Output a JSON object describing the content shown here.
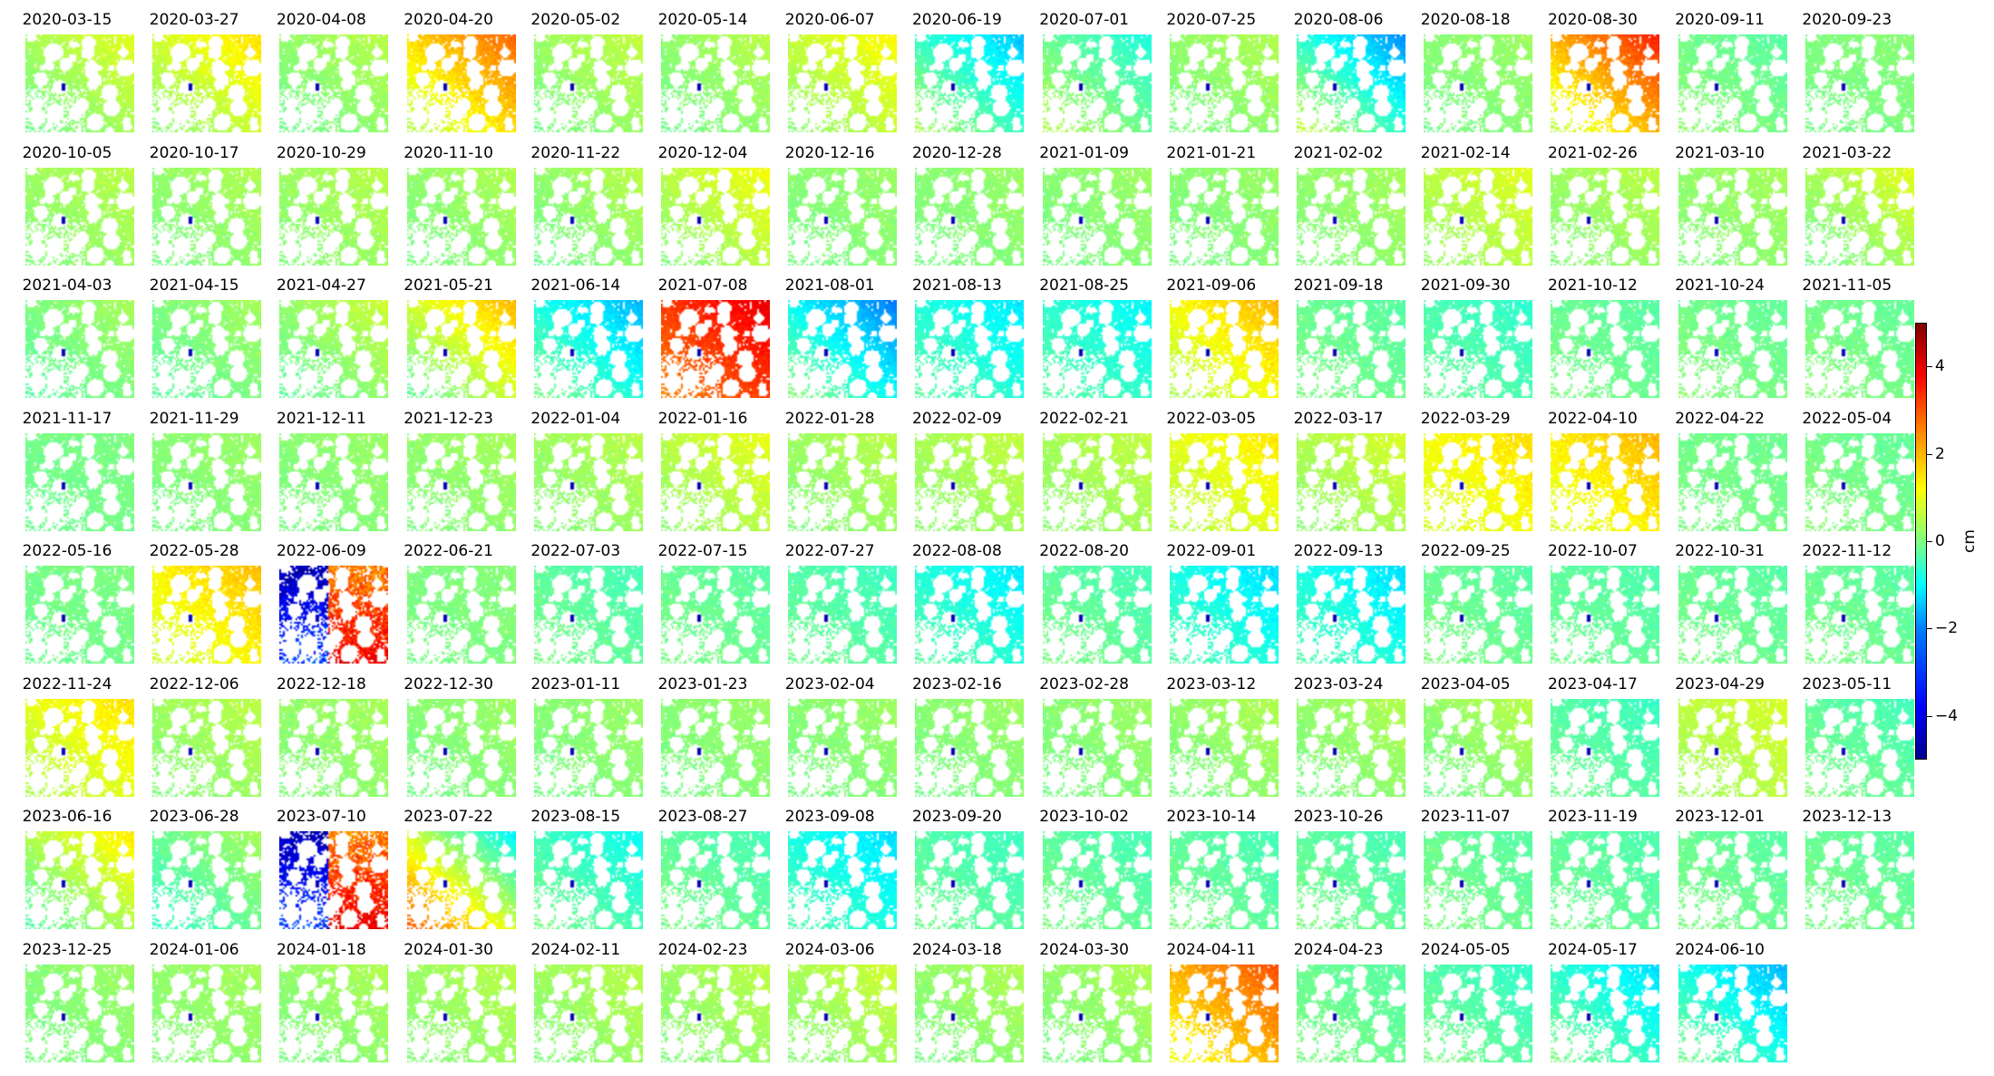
{
  "chart_data": {
    "type": "heatmap",
    "description_unit": "cm",
    "colorbar": {
      "label": "cm",
      "range": [
        -5,
        5
      ],
      "ticks": [
        -4,
        -2,
        0,
        2,
        4
      ],
      "tick_labels": [
        "−4",
        "−2",
        "0",
        "2",
        "4"
      ],
      "colormap": "jet"
    },
    "panels": [
      {
        "date": "2020-03-15",
        "mean": 0.4,
        "grad": 0.6
      },
      {
        "date": "2020-03-27",
        "mean": 0.8,
        "grad": 0.8
      },
      {
        "date": "2020-04-08",
        "mean": 0.2,
        "grad": 0.4
      },
      {
        "date": "2020-04-20",
        "mean": 1.6,
        "grad": 1.2
      },
      {
        "date": "2020-05-02",
        "mean": 0.3,
        "grad": 0.4
      },
      {
        "date": "2020-05-14",
        "mean": 0.2,
        "grad": 0.4
      },
      {
        "date": "2020-06-07",
        "mean": 0.7,
        "grad": 0.6
      },
      {
        "date": "2020-06-19",
        "mean": -0.7,
        "grad": -1.2
      },
      {
        "date": "2020-07-01",
        "mean": -0.2,
        "grad": -0.8
      },
      {
        "date": "2020-07-25",
        "mean": 0.2,
        "grad": 0.3
      },
      {
        "date": "2020-08-06",
        "mean": -0.8,
        "grad": -1.6
      },
      {
        "date": "2020-08-18",
        "mean": 0.1,
        "grad": 0.2
      },
      {
        "date": "2020-08-30",
        "mean": 2.0,
        "grad": 1.5
      },
      {
        "date": "2020-09-11",
        "mean": -0.1,
        "grad": -0.3
      },
      {
        "date": "2020-09-23",
        "mean": 0.0,
        "grad": 0.1
      },
      {
        "date": "2020-10-05",
        "mean": 0.3,
        "grad": 0.3
      },
      {
        "date": "2020-10-17",
        "mean": 0.2,
        "grad": 0.3
      },
      {
        "date": "2020-10-29",
        "mean": 0.3,
        "grad": 0.3
      },
      {
        "date": "2020-11-10",
        "mean": 0.2,
        "grad": 0.3
      },
      {
        "date": "2020-11-22",
        "mean": 0.2,
        "grad": 0.4
      },
      {
        "date": "2020-12-04",
        "mean": 0.6,
        "grad": 0.6
      },
      {
        "date": "2020-12-16",
        "mean": 0.1,
        "grad": 0.2
      },
      {
        "date": "2020-12-28",
        "mean": 0.1,
        "grad": 0.2
      },
      {
        "date": "2021-01-09",
        "mean": 0.1,
        "grad": 0.2
      },
      {
        "date": "2021-01-21",
        "mean": 0.1,
        "grad": 0.2
      },
      {
        "date": "2021-02-02",
        "mean": 0.2,
        "grad": 0.2
      },
      {
        "date": "2021-02-14",
        "mean": 0.6,
        "grad": 0.4
      },
      {
        "date": "2021-02-26",
        "mean": 0.3,
        "grad": 0.3
      },
      {
        "date": "2021-03-10",
        "mean": 0.2,
        "grad": 0.2
      },
      {
        "date": "2021-03-22",
        "mean": 0.4,
        "grad": 0.6
      },
      {
        "date": "2021-04-03",
        "mean": 0.0,
        "grad": 0.4
      },
      {
        "date": "2021-04-15",
        "mean": 0.0,
        "grad": 0.4
      },
      {
        "date": "2021-04-27",
        "mean": 0.2,
        "grad": 0.6
      },
      {
        "date": "2021-05-21",
        "mean": 0.8,
        "grad": 1.2
      },
      {
        "date": "2021-06-14",
        "mean": -1.0,
        "grad": -1.0
      },
      {
        "date": "2021-07-08",
        "mean": 3.2,
        "grad": 0.8
      },
      {
        "date": "2021-08-01",
        "mean": -1.2,
        "grad": -1.4
      },
      {
        "date": "2021-08-13",
        "mean": -0.9,
        "grad": -0.6
      },
      {
        "date": "2021-08-25",
        "mean": -0.8,
        "grad": -0.5
      },
      {
        "date": "2021-09-06",
        "mean": 1.2,
        "grad": 0.8
      },
      {
        "date": "2021-09-18",
        "mean": -0.2,
        "grad": -0.2
      },
      {
        "date": "2021-09-30",
        "mean": -0.5,
        "grad": -0.3
      },
      {
        "date": "2021-10-12",
        "mean": -0.2,
        "grad": -0.2
      },
      {
        "date": "2021-10-24",
        "mean": -0.1,
        "grad": -0.2
      },
      {
        "date": "2021-11-05",
        "mean": -0.1,
        "grad": -0.2
      },
      {
        "date": "2021-11-17",
        "mean": -0.1,
        "grad": 0.1
      },
      {
        "date": "2021-11-29",
        "mean": 0.1,
        "grad": 0.2
      },
      {
        "date": "2021-12-11",
        "mean": 0.1,
        "grad": 0.2
      },
      {
        "date": "2021-12-23",
        "mean": 0.2,
        "grad": 0.2
      },
      {
        "date": "2022-01-04",
        "mean": 0.3,
        "grad": 0.3
      },
      {
        "date": "2022-01-16",
        "mean": 0.6,
        "grad": 0.5
      },
      {
        "date": "2022-01-28",
        "mean": 0.3,
        "grad": 0.3
      },
      {
        "date": "2022-02-09",
        "mean": 0.4,
        "grad": 0.3
      },
      {
        "date": "2022-02-21",
        "mean": 0.4,
        "grad": 0.3
      },
      {
        "date": "2022-03-05",
        "mean": 1.0,
        "grad": 0.5
      },
      {
        "date": "2022-03-17",
        "mean": 0.5,
        "grad": 0.4
      },
      {
        "date": "2022-03-29",
        "mean": 1.2,
        "grad": 0.4
      },
      {
        "date": "2022-04-10",
        "mean": 1.4,
        "grad": 0.6
      },
      {
        "date": "2022-04-22",
        "mean": -0.1,
        "grad": -0.1
      },
      {
        "date": "2022-05-04",
        "mean": -0.1,
        "grad": -0.2
      },
      {
        "date": "2022-05-16",
        "mean": -0.1,
        "grad": 0.1
      },
      {
        "date": "2022-05-28",
        "mean": 1.3,
        "grad": 0.6
      },
      {
        "date": "2022-06-09",
        "mean": 0.0,
        "grad": 0.0
      },
      {
        "date": "2022-06-21",
        "mean": 0.0,
        "grad": 0.1
      },
      {
        "date": "2022-07-03",
        "mean": -0.3,
        "grad": -0.3
      },
      {
        "date": "2022-07-15",
        "mean": -0.2,
        "grad": -0.2
      },
      {
        "date": "2022-07-27",
        "mean": -0.4,
        "grad": -0.3
      },
      {
        "date": "2022-08-08",
        "mean": -0.9,
        "grad": -0.6
      },
      {
        "date": "2022-08-20",
        "mean": -0.3,
        "grad": -0.3
      },
      {
        "date": "2022-09-01",
        "mean": -1.0,
        "grad": -0.6
      },
      {
        "date": "2022-09-13",
        "mean": -1.0,
        "grad": -0.6
      },
      {
        "date": "2022-09-25",
        "mean": -0.2,
        "grad": -0.2
      },
      {
        "date": "2022-10-07",
        "mean": -0.3,
        "grad": -0.2
      },
      {
        "date": "2022-10-31",
        "mean": -0.2,
        "grad": -0.2
      },
      {
        "date": "2022-11-12",
        "mean": -0.2,
        "grad": -0.2
      },
      {
        "date": "2022-11-24",
        "mean": 1.0,
        "grad": 0.6
      },
      {
        "date": "2022-12-06",
        "mean": 0.3,
        "grad": 0.3
      },
      {
        "date": "2022-12-18",
        "mean": 0.2,
        "grad": 0.2
      },
      {
        "date": "2022-12-30",
        "mean": 0.1,
        "grad": 0.2
      },
      {
        "date": "2023-01-11",
        "mean": 0.1,
        "grad": 0.2
      },
      {
        "date": "2023-01-23",
        "mean": 0.1,
        "grad": 0.2
      },
      {
        "date": "2023-02-04",
        "mean": 0.1,
        "grad": 0.2
      },
      {
        "date": "2023-02-16",
        "mean": 0.1,
        "grad": 0.2
      },
      {
        "date": "2023-02-28",
        "mean": 0.1,
        "grad": 0.2
      },
      {
        "date": "2023-03-12",
        "mean": 0.2,
        "grad": 0.3
      },
      {
        "date": "2023-03-24",
        "mean": 0.2,
        "grad": 0.3
      },
      {
        "date": "2023-04-05",
        "mean": 0.2,
        "grad": 0.4
      },
      {
        "date": "2023-04-17",
        "mean": -0.4,
        "grad": -0.3
      },
      {
        "date": "2023-04-29",
        "mean": 0.6,
        "grad": 0.3
      },
      {
        "date": "2023-05-11",
        "mean": -0.3,
        "grad": -0.3
      },
      {
        "date": "2023-06-16",
        "mean": 0.5,
        "grad": 1.0
      },
      {
        "date": "2023-06-28",
        "mean": -0.2,
        "grad": 0.6
      },
      {
        "date": "2023-07-10",
        "mean": 0.0,
        "grad": 0.0
      },
      {
        "date": "2023-07-22",
        "mean": 0.8,
        "grad": -2.2
      },
      {
        "date": "2023-08-15",
        "mean": -0.6,
        "grad": -0.6
      },
      {
        "date": "2023-08-27",
        "mean": -0.3,
        "grad": -0.3
      },
      {
        "date": "2023-09-08",
        "mean": -1.0,
        "grad": -0.6
      },
      {
        "date": "2023-09-20",
        "mean": -0.4,
        "grad": -0.3
      },
      {
        "date": "2023-10-02",
        "mean": -0.3,
        "grad": -0.3
      },
      {
        "date": "2023-10-14",
        "mean": -0.3,
        "grad": -0.3
      },
      {
        "date": "2023-10-26",
        "mean": -0.3,
        "grad": -0.3
      },
      {
        "date": "2023-11-07",
        "mean": -0.2,
        "grad": -0.2
      },
      {
        "date": "2023-11-19",
        "mean": -0.3,
        "grad": -0.2
      },
      {
        "date": "2023-12-01",
        "mean": -0.2,
        "grad": -0.2
      },
      {
        "date": "2023-12-13",
        "mean": -0.2,
        "grad": -0.2
      },
      {
        "date": "2023-12-25",
        "mean": 0.1,
        "grad": 0.2
      },
      {
        "date": "2024-01-06",
        "mean": 0.2,
        "grad": 0.2
      },
      {
        "date": "2024-01-18",
        "mean": 0.2,
        "grad": 0.3
      },
      {
        "date": "2024-01-30",
        "mean": 0.3,
        "grad": 0.3
      },
      {
        "date": "2024-02-11",
        "mean": 0.3,
        "grad": 0.3
      },
      {
        "date": "2024-02-23",
        "mean": 0.3,
        "grad": 0.3
      },
      {
        "date": "2024-03-06",
        "mean": 0.4,
        "grad": 0.4
      },
      {
        "date": "2024-03-18",
        "mean": 0.2,
        "grad": 0.3
      },
      {
        "date": "2024-03-30",
        "mean": 0.2,
        "grad": 0.3
      },
      {
        "date": "2024-04-11",
        "mean": 2.0,
        "grad": 1.0
      },
      {
        "date": "2024-04-23",
        "mean": -0.2,
        "grad": -0.2
      },
      {
        "date": "2024-05-05",
        "mean": -0.4,
        "grad": -0.4
      },
      {
        "date": "2024-05-17",
        "mean": -0.8,
        "grad": -0.8
      },
      {
        "date": "2024-06-10",
        "mean": -1.0,
        "grad": -1.0
      }
    ],
    "special_patterns": {
      "2022-06-09": "split",
      "2023-07-10": "split"
    }
  }
}
